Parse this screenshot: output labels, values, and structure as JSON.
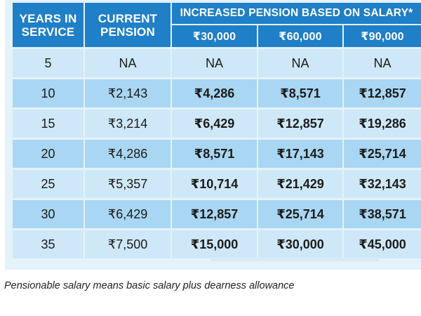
{
  "table": {
    "headers": {
      "years": "YEARS IN SERVICE",
      "current": "CURRENT PENSION",
      "group": "INCREASED PENSION BASED ON SALARY*",
      "salaries": [
        "₹30,000",
        "₹60,000",
        "₹90,000"
      ]
    },
    "rows": [
      {
        "years": "5",
        "current": "NA",
        "s30": "NA",
        "s60": "NA",
        "s90": "NA"
      },
      {
        "years": "10",
        "current": "₹2,143",
        "s30": "₹4,286",
        "s60": "₹8,571",
        "s90": "₹12,857"
      },
      {
        "years": "15",
        "current": "₹3,214",
        "s30": "₹6,429",
        "s60": "₹12,857",
        "s90": "₹19,286"
      },
      {
        "years": "20",
        "current": "₹4,286",
        "s30": "₹8,571",
        "s60": "₹17,143",
        "s90": "₹25,714"
      },
      {
        "years": "25",
        "current": "₹5,357",
        "s30": "₹10,714",
        "s60": "₹21,429",
        "s90": "₹32,143"
      },
      {
        "years": "30",
        "current": "₹6,429",
        "s30": "₹12,857",
        "s60": "₹25,714",
        "s90": "₹38,571"
      },
      {
        "years": "35",
        "current": "₹7,500",
        "s30": "₹15,000",
        "s60": "₹30,000",
        "s90": "₹45,000"
      }
    ]
  },
  "footnote": "Pensionable salary means basic salary plus dearness allowance",
  "colors": {
    "header_bg": "#1f7fc7",
    "row_light": "#cfe8f7",
    "row_dark": "#a9d6f2",
    "panel_bg": "#e4f2fa"
  }
}
